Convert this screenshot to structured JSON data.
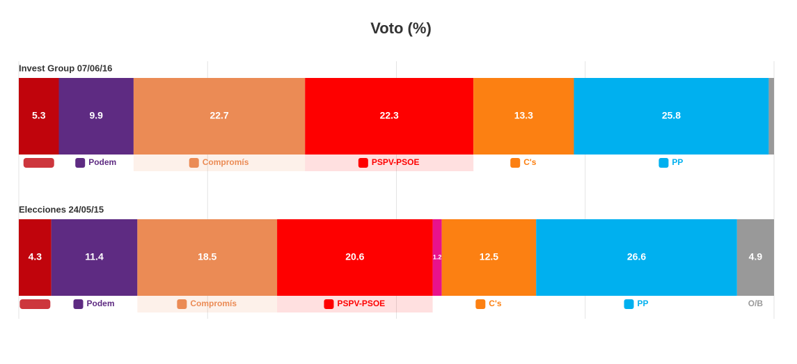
{
  "chart_data": {
    "type": "stacked-bar",
    "orientation": "horizontal",
    "title": "Voto (%)",
    "categories": [
      "Invest Group 07/06/16",
      "Elecciones 24/05/15"
    ],
    "xlim": [
      0,
      100
    ],
    "xticks": [
      0,
      25,
      50,
      75,
      100
    ],
    "grid": true,
    "series": [
      {
        "name": null,
        "color": "#c0040c",
        "values": [
          5.3,
          4.3
        ]
      },
      {
        "name": "Podem",
        "color": "#5e2b82",
        "values": [
          9.9,
          11.4
        ]
      },
      {
        "name": "Compromís",
        "color": "#eb8b55",
        "values": [
          22.7,
          18.5
        ],
        "highlight": true
      },
      {
        "name": "PSPV-PSOE",
        "color": "#fe0000",
        "values": [
          22.3,
          20.6
        ],
        "highlight": true
      },
      {
        "name": null,
        "color": "#e8128c",
        "values": [
          null,
          1.2
        ]
      },
      {
        "name": "C's",
        "color": "#fc8012",
        "values": [
          13.3,
          12.5
        ]
      },
      {
        "name": "PP",
        "color": "#00b0ef",
        "values": [
          25.8,
          26.6
        ]
      },
      {
        "name": "O/B",
        "color": "#999999",
        "values": [
          0.7,
          4.9
        ]
      }
    ]
  }
}
